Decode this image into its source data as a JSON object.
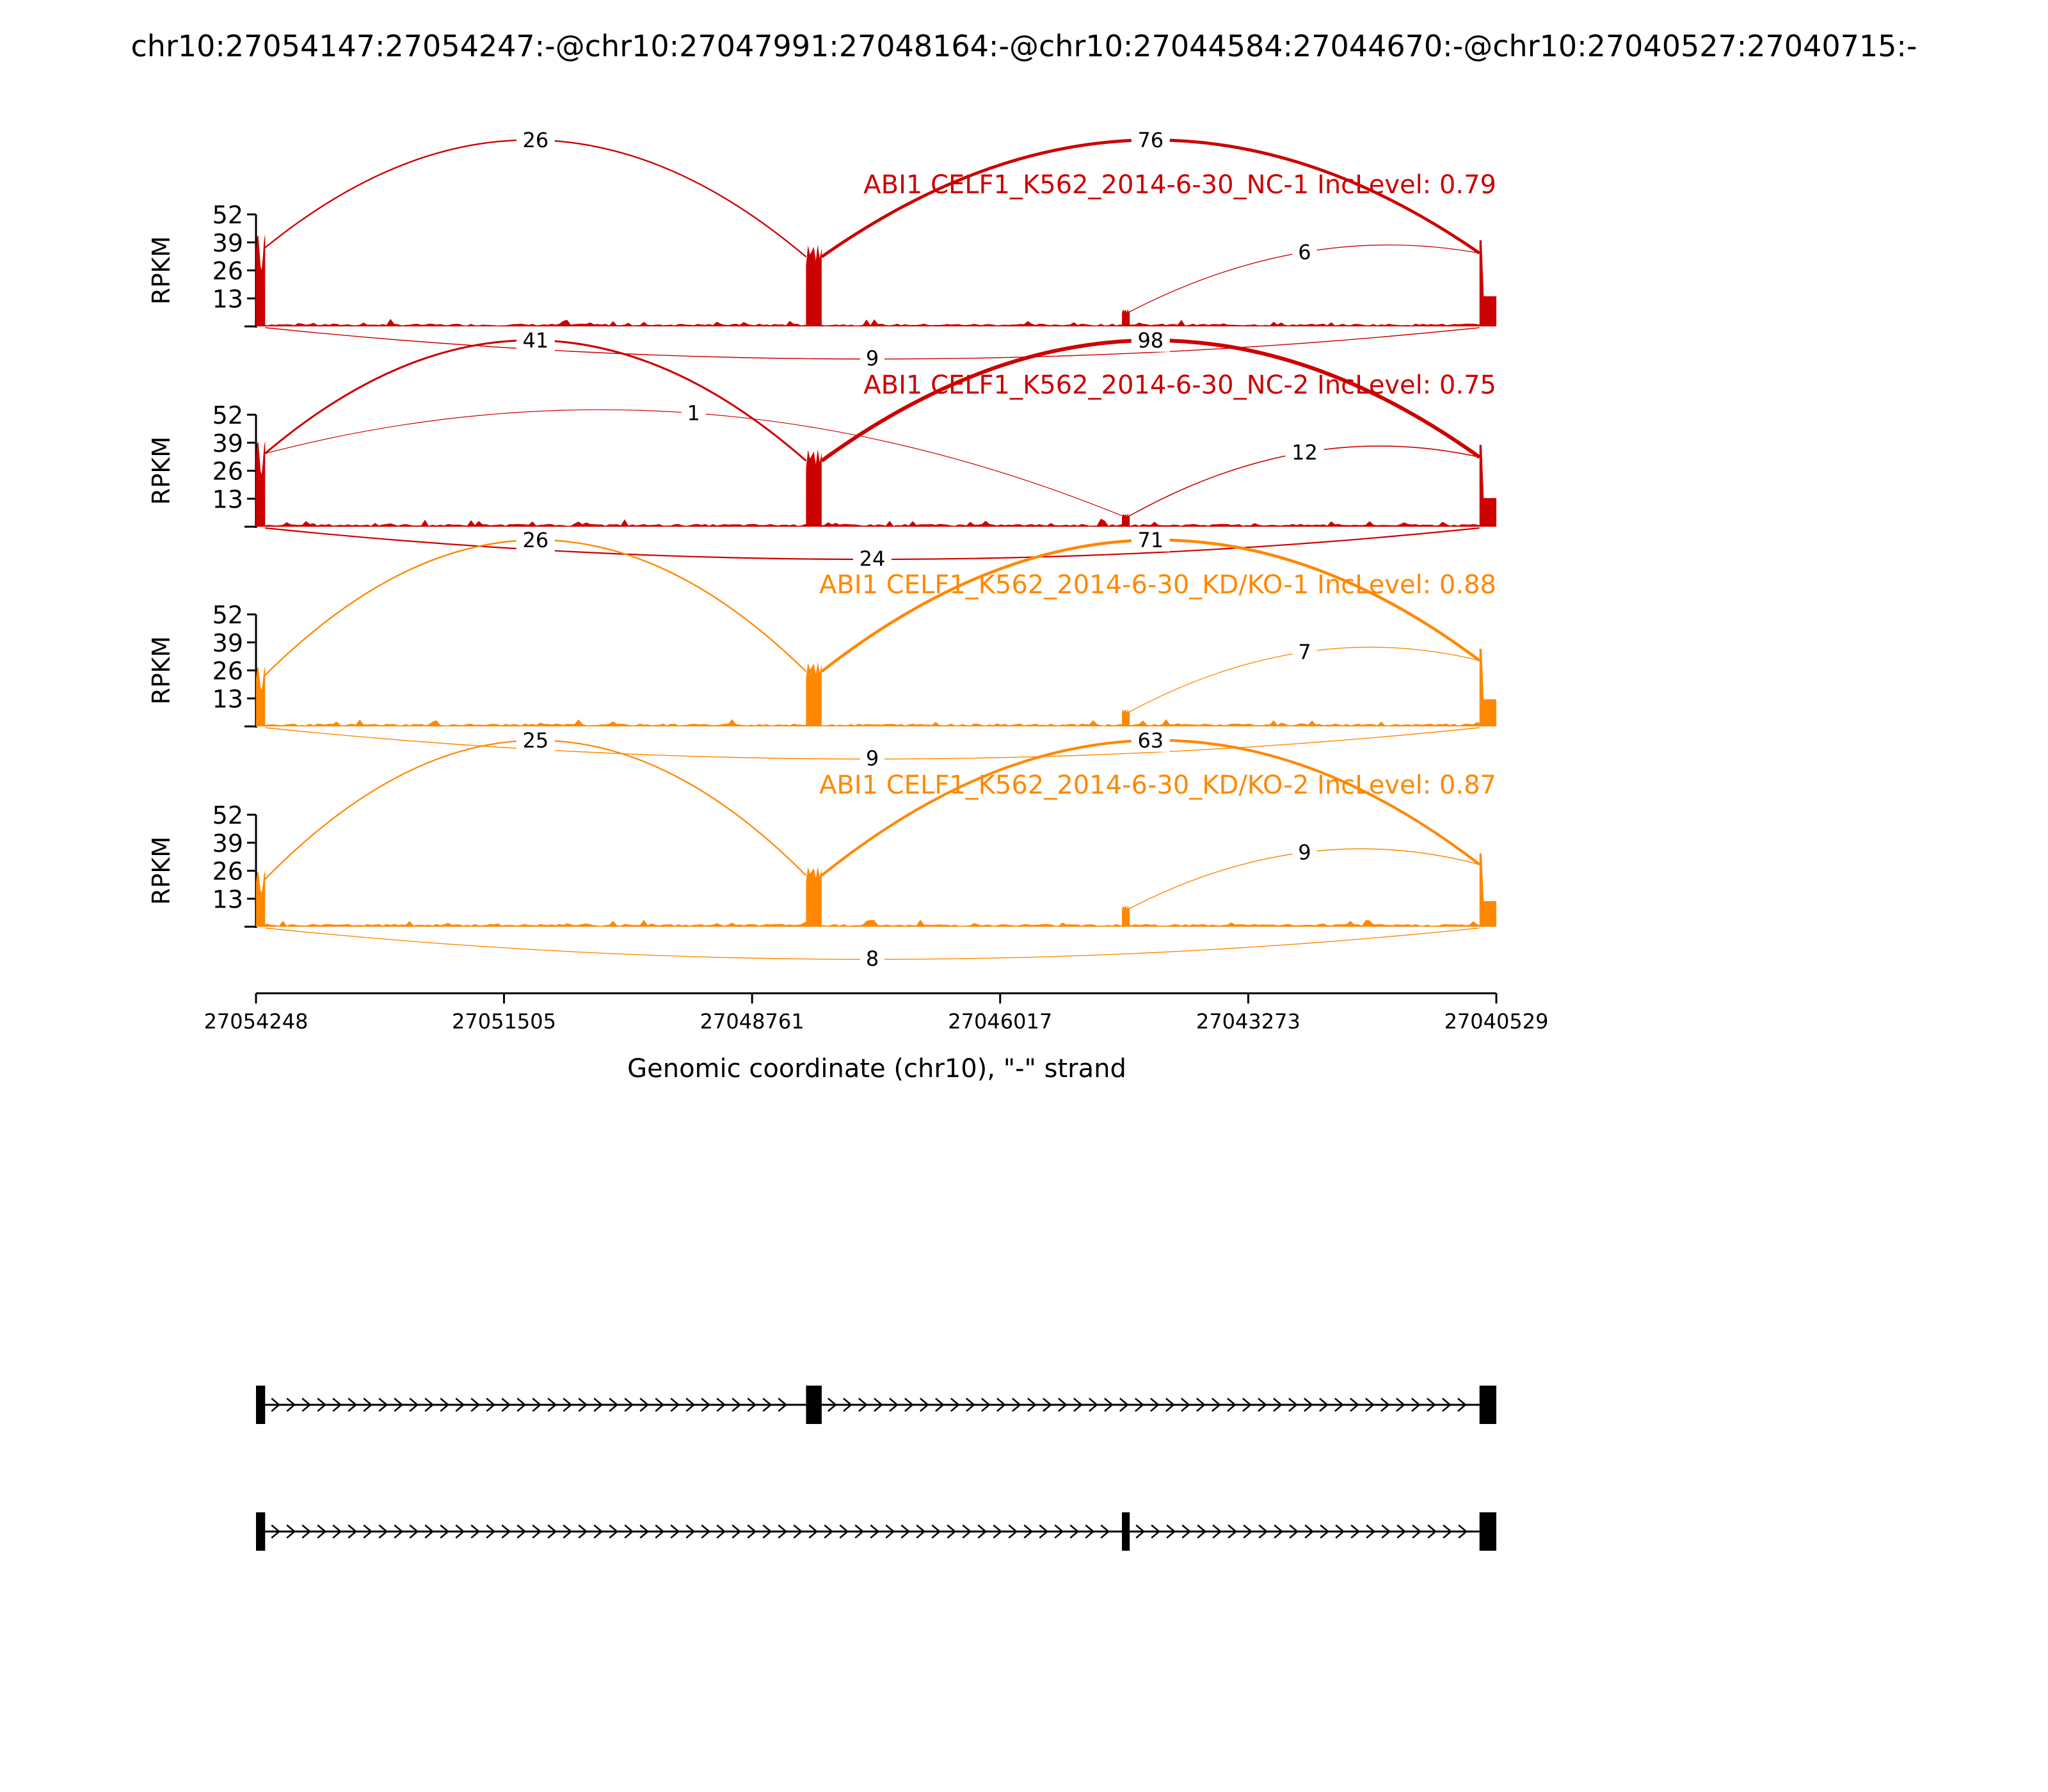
{
  "chart_data": {
    "type": "sashimi",
    "title": "chr10:27054147:27054247:-@chr10:27047991:27048164:-@chr10:27044584:27044670:-@chr10:27040527:27040715:-",
    "xlabel": "Genomic coordinate (chr10), \"-\" strand",
    "ylabel": "RPKM",
    "x_range": [
      27054248,
      27040529
    ],
    "x_ticks": [
      "27054248",
      "27051505",
      "27048761",
      "27046017",
      "27043273",
      "27040529"
    ],
    "ylim": [
      0,
      52
    ],
    "y_ticks": [
      "13",
      "26",
      "39",
      "52"
    ],
    "exons": [
      {
        "name": "exon1",
        "start": 27054248,
        "end": 27054147
      },
      {
        "name": "exon2",
        "start": 27048164,
        "end": 27047991
      },
      {
        "name": "exon3",
        "start": 27044670,
        "end": 27044584
      },
      {
        "name": "exon4",
        "start": 27040715,
        "end": 27040529
      }
    ],
    "tracks": [
      {
        "label": "ABI1 CELF1_K562_2014-6-30_NC-1 IncLevel: 0.79",
        "color": "#cc0000",
        "coverage_peaks": [
          43,
          38,
          8,
          40
        ],
        "junctions": [
          {
            "from": "exon1",
            "to": "exon2",
            "count": "26",
            "side": "above"
          },
          {
            "from": "exon2",
            "to": "exon4",
            "count": "76",
            "side": "above"
          },
          {
            "from": "exon3",
            "to": "exon4",
            "count": "6",
            "side": "above"
          },
          {
            "from": "exon1",
            "to": "exon4",
            "count": "9",
            "side": "below"
          }
        ]
      },
      {
        "label": "ABI1 CELF1_K562_2014-6-30_NC-2 IncLevel: 0.75",
        "color": "#cc0000",
        "coverage_peaks": [
          40,
          36,
          6,
          38
        ],
        "junctions": [
          {
            "from": "exon1",
            "to": "exon2",
            "count": "41",
            "side": "above"
          },
          {
            "from": "exon1",
            "to": "exon3",
            "count": "1",
            "side": "above"
          },
          {
            "from": "exon2",
            "to": "exon4",
            "count": "98",
            "side": "above"
          },
          {
            "from": "exon3",
            "to": "exon4",
            "count": "12",
            "side": "above"
          },
          {
            "from": "exon1",
            "to": "exon4",
            "count": "24",
            "side": "below"
          }
        ]
      },
      {
        "label": "ABI1 CELF1_K562_2014-6-30_KD/KO-1 IncLevel: 0.88",
        "color": "#ff8800",
        "coverage_peaks": [
          28,
          30,
          8,
          36
        ],
        "junctions": [
          {
            "from": "exon1",
            "to": "exon2",
            "count": "26",
            "side": "above"
          },
          {
            "from": "exon2",
            "to": "exon4",
            "count": "71",
            "side": "above"
          },
          {
            "from": "exon3",
            "to": "exon4",
            "count": "7",
            "side": "above"
          },
          {
            "from": "exon1",
            "to": "exon4",
            "count": "9",
            "side": "below"
          }
        ]
      },
      {
        "label": "ABI1 CELF1_K562_2014-6-30_KD/KO-2 IncLevel: 0.87",
        "color": "#ff8800",
        "coverage_peaks": [
          26,
          28,
          10,
          34
        ],
        "junctions": [
          {
            "from": "exon1",
            "to": "exon2",
            "count": "25",
            "side": "above"
          },
          {
            "from": "exon2",
            "to": "exon4",
            "count": "63",
            "side": "above"
          },
          {
            "from": "exon3",
            "to": "exon4",
            "count": "9",
            "side": "above"
          },
          {
            "from": "exon1",
            "to": "exon4",
            "count": "8",
            "side": "below"
          }
        ]
      }
    ],
    "isoforms": [
      {
        "exons": [
          "exon1",
          "exon2",
          "exon4"
        ]
      },
      {
        "exons": [
          "exon1",
          "exon3",
          "exon4"
        ]
      }
    ]
  }
}
